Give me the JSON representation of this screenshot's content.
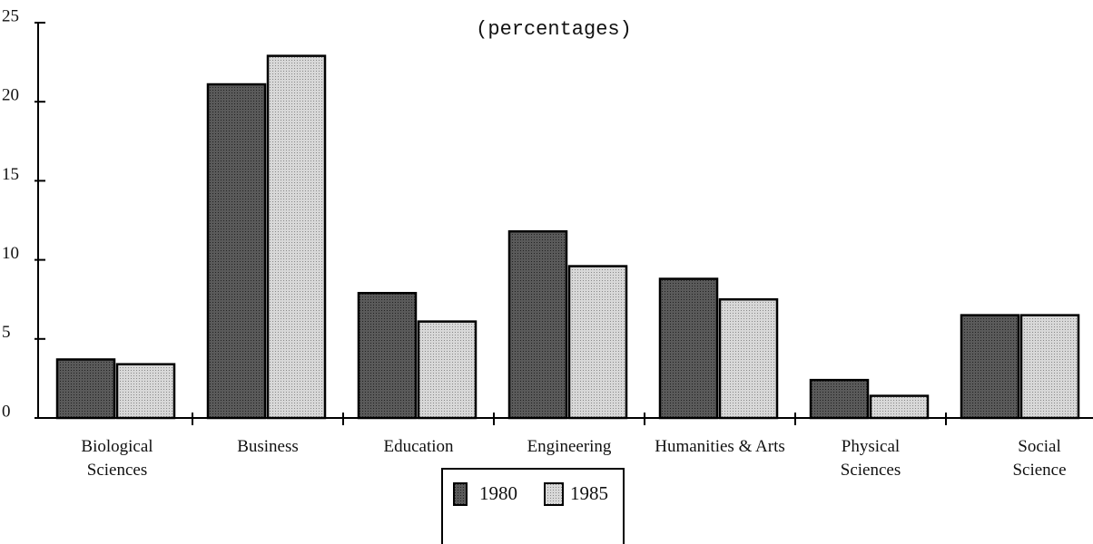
{
  "chart_data": {
    "type": "bar",
    "title": "(percentages)",
    "categories": [
      "Biological Sciences",
      "Business",
      "Education",
      "Engineering",
      "Humanities & Arts",
      "Physical Sciences",
      "Social Science"
    ],
    "series": [
      {
        "name": "1980",
        "color": "#5a5a5a",
        "values": [
          3.7,
          21.1,
          7.9,
          11.8,
          8.8,
          2.4,
          6.5
        ]
      },
      {
        "name": "1985",
        "color": "#d8d8d8",
        "values": [
          3.4,
          22.9,
          6.1,
          9.6,
          7.5,
          1.4,
          6.5
        ]
      }
    ],
    "ylim": [
      0,
      25
    ],
    "yticks": [
      0,
      5,
      10,
      15,
      20,
      25
    ],
    "grid": false
  }
}
